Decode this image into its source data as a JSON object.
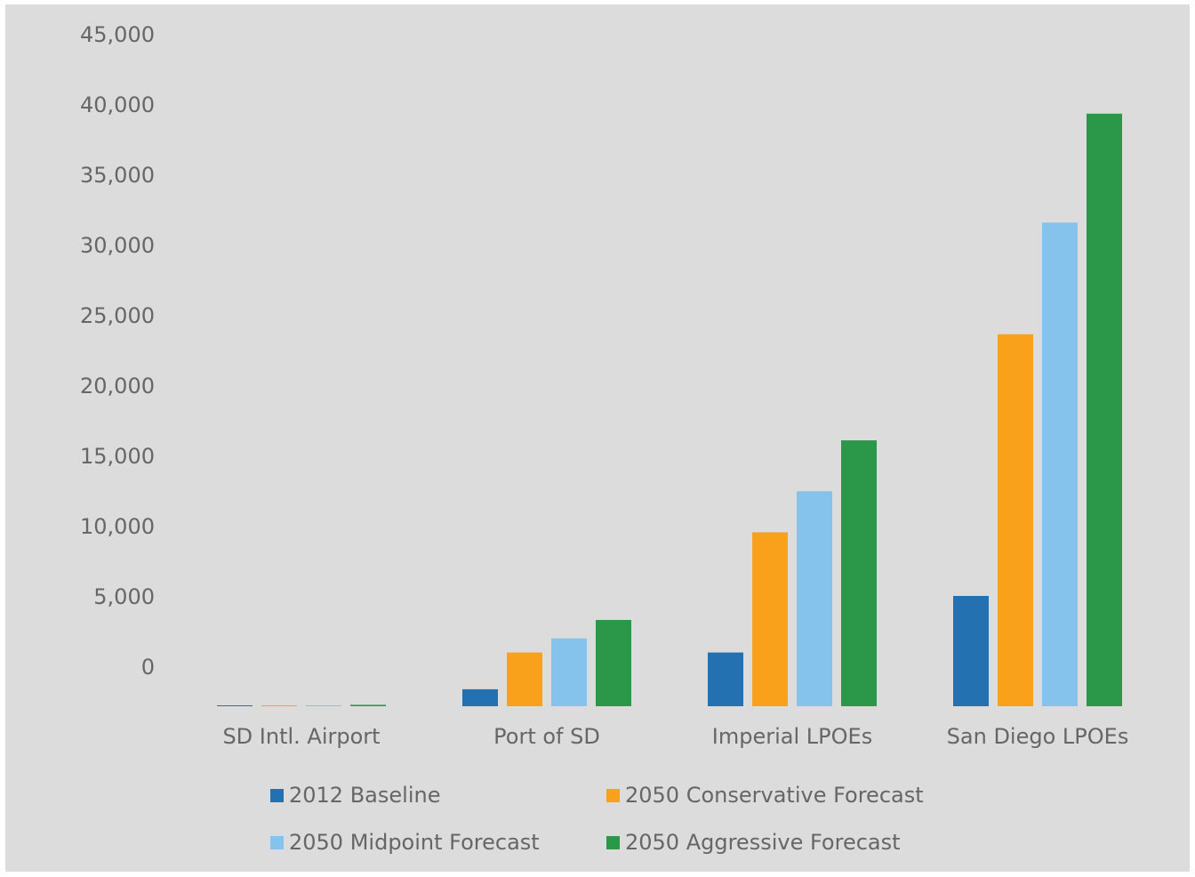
{
  "chart_data": {
    "type": "bar",
    "title": "",
    "xlabel": "",
    "ylabel": "",
    "categories": [
      "SD Intl. Airport",
      "Port of SD",
      "Imperial LPOEs",
      "San Diego LPOEs"
    ],
    "y_ticks": [
      "45,000",
      "40,000",
      "35,000",
      "30,000",
      "25,000",
      "20,000",
      "15,000",
      "10,000",
      "5,000",
      "0"
    ],
    "series": [
      {
        "name": "2012 Baseline",
        "color": "#2471b1",
        "values": [
          0,
          1200,
          3800,
          7800
        ]
      },
      {
        "name": "2050 Conservative Forecast",
        "color": "#f9a11b",
        "values": [
          0,
          3800,
          12300,
          26300
        ]
      },
      {
        "name": "2050 Midpoint Forecast",
        "color": "#85c3ed",
        "values": [
          0,
          4800,
          15200,
          34200
        ]
      },
      {
        "name": "2050 Aggressive Forecast",
        "color": "#2b9748",
        "values": [
          100,
          6100,
          18800,
          41900
        ]
      }
    ],
    "legend_position": "bottom",
    "grid": false
  }
}
